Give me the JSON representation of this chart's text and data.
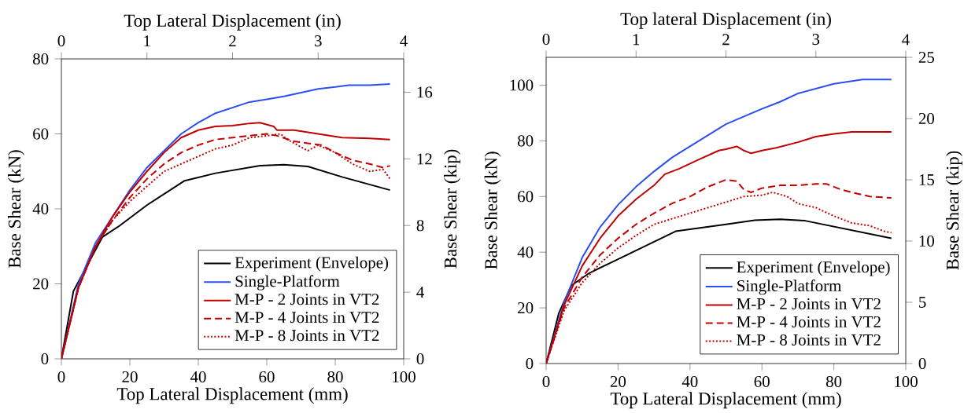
{
  "chart_data": [
    {
      "type": "line",
      "xlabel": "Top Lateral Displacement (mm)",
      "x2label": "Top Lateral Displacement (in)",
      "ylabel": "Base Shear (kN)",
      "y2label": "Base Shear (kip)",
      "xlim": [
        0,
        100
      ],
      "xticks": [
        0,
        20,
        40,
        60,
        80,
        100
      ],
      "x2lim": [
        0,
        4
      ],
      "x2ticks": [
        0,
        1,
        2,
        3,
        4
      ],
      "ylim": [
        0,
        80
      ],
      "yticks": [
        0,
        20,
        40,
        60,
        80
      ],
      "y2lim": [
        0,
        18
      ],
      "y2ticks": [
        0,
        4,
        8,
        12,
        16
      ],
      "legend": "bottom right",
      "series": [
        {
          "name": "Experiment (Envelope)",
          "color": "#000000",
          "line_style": "solid",
          "x": [
            0,
            3.5,
            12,
            17,
            25,
            36,
            45,
            58,
            65,
            72,
            82,
            96
          ],
          "values": [
            0,
            18,
            32.5,
            35.5,
            41,
            47.5,
            49.5,
            51.5,
            51.8,
            51.3,
            48.5,
            45
          ]
        },
        {
          "name": "Single-Platform",
          "color": "#2b4ef0",
          "line_style": "solid",
          "x": [
            0,
            5,
            10,
            15,
            20,
            25,
            30,
            35,
            40,
            45,
            50,
            55,
            60,
            65,
            70,
            75,
            80,
            84,
            90,
            96
          ],
          "values": [
            0,
            20,
            31,
            38,
            45,
            51,
            55.5,
            60,
            63,
            65.5,
            67,
            68.5,
            69.2,
            70,
            71,
            72,
            72.5,
            73,
            73,
            73.3
          ]
        },
        {
          "name": "M-P - 2 Joints in VT2",
          "color": "#c00000",
          "line_style": "solid",
          "x": [
            0,
            5,
            10,
            15,
            20,
            25,
            30,
            35,
            40,
            45,
            50,
            55,
            58,
            62,
            63,
            68,
            75,
            82,
            90,
            96
          ],
          "values": [
            0,
            19,
            30,
            38,
            44.5,
            50,
            55,
            59,
            61,
            62,
            62.2,
            62.8,
            63,
            62,
            61,
            61,
            60,
            59,
            58.8,
            58.5
          ]
        },
        {
          "name": "M-P - 4 Joints in VT2",
          "color": "#c00000",
          "line_style": "dashed",
          "x": [
            0,
            5,
            10,
            15,
            20,
            25,
            30,
            35,
            40,
            45,
            50,
            55,
            60,
            63,
            68,
            72,
            76,
            80,
            85,
            90,
            94,
            96
          ],
          "values": [
            0,
            19,
            30,
            37,
            43,
            48,
            52,
            55,
            57,
            58.5,
            59,
            59.5,
            60,
            59.5,
            58,
            57.5,
            57,
            55,
            53,
            52,
            51,
            51.5
          ]
        },
        {
          "name": "M-P - 8 Joints in VT2",
          "color": "#c00000",
          "line_style": "dotted",
          "x": [
            0,
            5,
            10,
            15,
            20,
            25,
            30,
            35,
            40,
            45,
            50,
            55,
            60,
            64,
            66,
            72,
            75,
            80,
            85,
            90,
            94,
            96
          ],
          "values": [
            0,
            19,
            30,
            37,
            42,
            46,
            50,
            52,
            54,
            56,
            57,
            59,
            59.5,
            60,
            58.5,
            55.5,
            57,
            55,
            52,
            50,
            50.5,
            48
          ]
        }
      ]
    },
    {
      "type": "line",
      "xlabel": "Top Lateral Displacement (mm)",
      "x2label": "Top lateral Displacement (in)",
      "ylabel": "Base Shear (kN)",
      "y2label": "Base Shear (kip)",
      "xlim": [
        0,
        100
      ],
      "xticks": [
        0,
        20,
        40,
        60,
        80,
        100
      ],
      "x2lim": [
        0,
        4
      ],
      "x2ticks": [
        0,
        1,
        2,
        3,
        4
      ],
      "ylim": [
        0,
        110
      ],
      "yticks": [
        0,
        20,
        40,
        60,
        80,
        100
      ],
      "y2lim": [
        0,
        25
      ],
      "y2ticks": [
        0,
        5,
        10,
        15,
        20,
        25
      ],
      "legend": "bottom right",
      "series": [
        {
          "name": "Experiment (Envelope)",
          "color": "#000000",
          "line_style": "solid",
          "x": [
            0,
            3.5,
            7,
            12,
            20,
            36,
            50,
            58,
            65,
            72,
            96
          ],
          "values": [
            0,
            18,
            28,
            32.5,
            37.5,
            47.5,
            50,
            51.5,
            51.8,
            51.3,
            45
          ]
        },
        {
          "name": "Single-Platform",
          "color": "#2b4ef0",
          "line_style": "solid",
          "x": [
            0,
            5,
            10,
            15,
            20,
            25,
            30,
            35,
            40,
            50,
            60,
            65,
            70,
            80,
            88,
            96
          ],
          "values": [
            0,
            22,
            38,
            49,
            57,
            63.5,
            69,
            74,
            78,
            86,
            91.5,
            94,
            97,
            100.5,
            102,
            102
          ]
        },
        {
          "name": "M-P - 2 Joints in VT2",
          "color": "#c00000",
          "line_style": "solid",
          "x": [
            0,
            5,
            10,
            15,
            20,
            25,
            30,
            33,
            37,
            42,
            48,
            50,
            53,
            55,
            57,
            60,
            64,
            70,
            75,
            80,
            85,
            96
          ],
          "values": [
            0,
            21,
            35,
            45,
            53,
            59,
            64,
            68,
            70,
            73,
            76.5,
            77,
            78,
            76.5,
            75.5,
            76.5,
            77.5,
            79.5,
            81.5,
            82.5,
            83.2,
            83.2
          ]
        },
        {
          "name": "M-P - 4 Joints in VT2",
          "color": "#c00000",
          "line_style": "dashed",
          "x": [
            0,
            5,
            10,
            15,
            20,
            25,
            30,
            35,
            40,
            45,
            50,
            53,
            55,
            57,
            60,
            65,
            70,
            75,
            78,
            82,
            85,
            90,
            96
          ],
          "values": [
            0,
            20,
            31,
            39,
            45,
            50,
            54,
            57.5,
            60,
            63.5,
            66,
            65.5,
            62.5,
            61.5,
            63,
            64,
            64,
            64.5,
            64.5,
            62.5,
            61.5,
            60,
            59.5
          ]
        },
        {
          "name": "M-P - 8 Joints in VT2",
          "color": "#c00000",
          "line_style": "dotted",
          "x": [
            0,
            5,
            10,
            15,
            20,
            25,
            30,
            35,
            40,
            45,
            50,
            55,
            60,
            63,
            67,
            70,
            75,
            80,
            85,
            90,
            94,
            96
          ],
          "values": [
            0,
            19,
            29,
            36,
            41.5,
            46,
            50,
            52,
            54,
            56,
            58,
            60,
            60.5,
            61.5,
            60,
            57.5,
            56,
            53,
            50.5,
            49.5,
            47.5,
            47
          ]
        }
      ]
    }
  ]
}
